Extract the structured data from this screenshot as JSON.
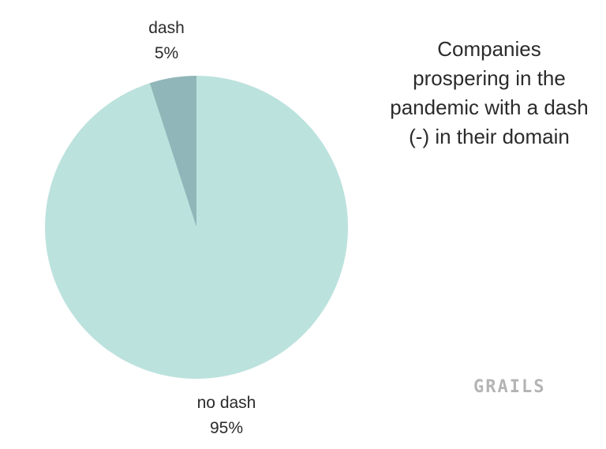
{
  "chart_data": {
    "type": "pie",
    "title": "Companies prospering in the pandemic with a dash (-) in their domain",
    "slices": [
      {
        "label": "dash",
        "value": 5,
        "display": "5%",
        "color": "#91b6b9"
      },
      {
        "label": "no dash",
        "value": 95,
        "display": "95%",
        "color": "#bce2dd"
      }
    ]
  },
  "brand": {
    "logo_text": "GRAILS"
  }
}
